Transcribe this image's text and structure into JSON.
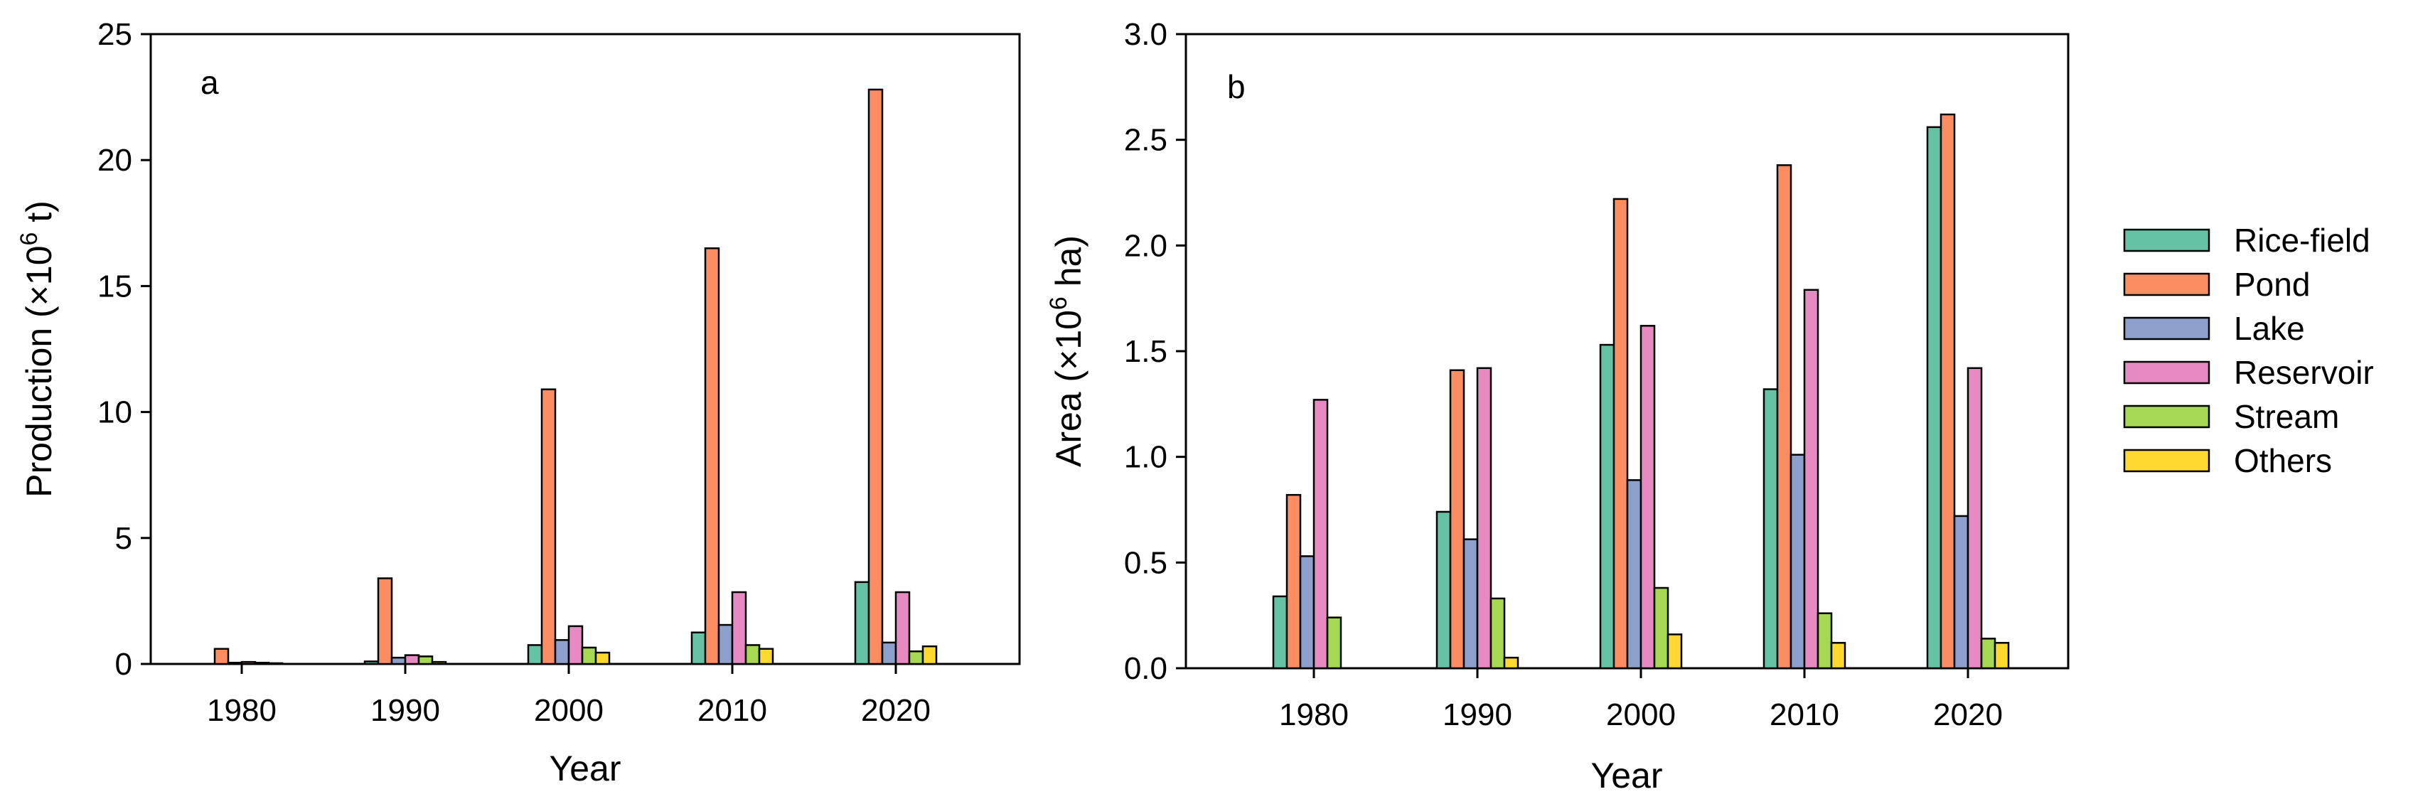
{
  "chart_data": [
    {
      "type": "bar",
      "panel_label": "a",
      "xlabel": "Year",
      "ylabel_prefix": "Production (×10",
      "ylabel_sup": "6",
      "ylabel_suffix": " t)",
      "ylim": [
        0,
        25
      ],
      "yticks": [
        0,
        5,
        10,
        15,
        20,
        25
      ],
      "ytick_labels": [
        "0",
        "5",
        "10",
        "15",
        "20",
        "25"
      ],
      "categories": [
        "1980",
        "1990",
        "2000",
        "2010",
        "2020"
      ],
      "series": [
        {
          "name": "Rice-field",
          "values": [
            0.0,
            0.1,
            0.75,
            1.25,
            3.25
          ]
        },
        {
          "name": "Pond",
          "values": [
            0.6,
            3.4,
            10.9,
            16.5,
            22.8
          ]
        },
        {
          "name": "Lake",
          "values": [
            0.05,
            0.25,
            0.95,
            1.55,
            0.85
          ]
        },
        {
          "name": "Reservoir",
          "values": [
            0.08,
            0.35,
            1.5,
            2.85,
            2.85
          ]
        },
        {
          "name": "Stream",
          "values": [
            0.05,
            0.3,
            0.65,
            0.75,
            0.5
          ]
        },
        {
          "name": "Others",
          "values": [
            0.03,
            0.08,
            0.45,
            0.6,
            0.7
          ]
        }
      ]
    },
    {
      "type": "bar",
      "panel_label": "b",
      "xlabel": "Year",
      "ylabel_prefix": "Area (×10",
      "ylabel_sup": "6",
      "ylabel_suffix": " ha)",
      "ylim": [
        0,
        3.0
      ],
      "yticks": [
        0,
        0.5,
        1.0,
        1.5,
        2.0,
        2.5,
        3.0
      ],
      "ytick_labels": [
        "0.0",
        "0.5",
        "1.0",
        "1.5",
        "2.0",
        "2.5",
        "3.0"
      ],
      "categories": [
        "1980",
        "1990",
        "2000",
        "2010",
        "2020"
      ],
      "series": [
        {
          "name": "Rice-field",
          "values": [
            0.34,
            0.74,
            1.53,
            1.32,
            2.56
          ]
        },
        {
          "name": "Pond",
          "values": [
            0.82,
            1.41,
            2.22,
            2.38,
            2.62
          ]
        },
        {
          "name": "Lake",
          "values": [
            0.53,
            0.61,
            0.89,
            1.01,
            0.72
          ]
        },
        {
          "name": "Reservoir",
          "values": [
            1.27,
            1.42,
            1.62,
            1.79,
            1.42
          ]
        },
        {
          "name": "Stream",
          "values": [
            0.24,
            0.33,
            0.38,
            0.26,
            0.14
          ]
        },
        {
          "name": "Others",
          "values": [
            0.0,
            0.05,
            0.16,
            0.12,
            0.12
          ]
        }
      ]
    }
  ],
  "legend": {
    "items": [
      {
        "name": "Rice-field",
        "color": "#66c2a5"
      },
      {
        "name": "Pond",
        "color": "#fc8d62"
      },
      {
        "name": "Lake",
        "color": "#8da0cb"
      },
      {
        "name": "Reservoir",
        "color": "#e78ac3"
      },
      {
        "name": "Stream",
        "color": "#a6d854"
      },
      {
        "name": "Others",
        "color": "#ffd92f"
      }
    ]
  }
}
